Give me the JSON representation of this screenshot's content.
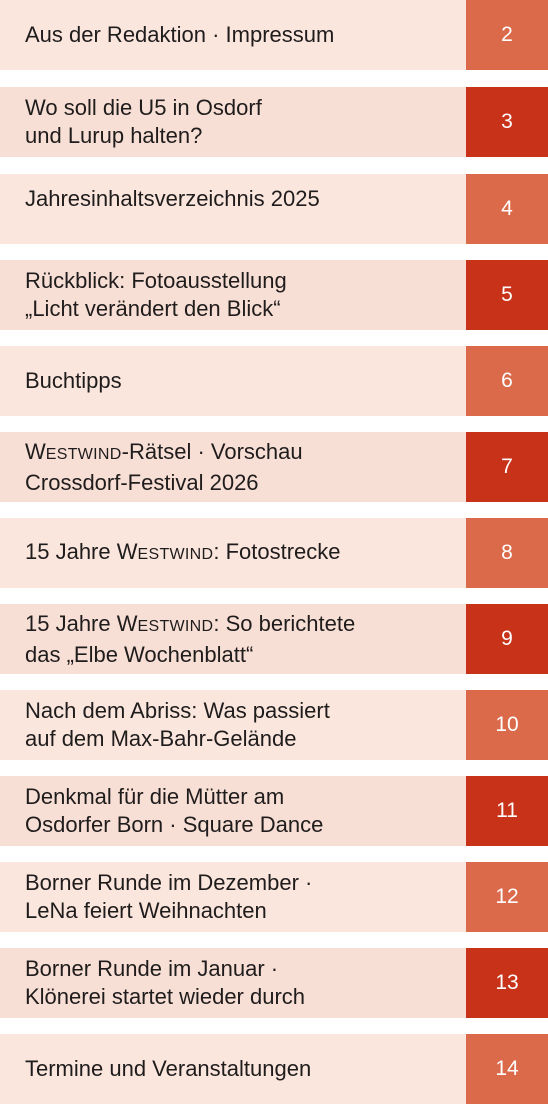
{
  "colors": {
    "page_box_orange": "#db6a4b",
    "page_box_red": "#c83219",
    "row_background_light": "#fbe6de",
    "row_background_darker": "#f8dfd6",
    "text": "#1f1c1c"
  },
  "toc": [
    {
      "lines": [
        "Aus der Redaktion · Impressum"
      ],
      "page": "2"
    },
    {
      "lines": [
        "Wo soll die U5 in Osdorf",
        "und Lurup halten?"
      ],
      "page": "3"
    },
    {
      "lines": [
        "Jahresinhaltsverzeichnis 2025"
      ],
      "page": "4"
    },
    {
      "lines": [
        "Rückblick: Fotoausstellung",
        "„Licht verändert den Blick“"
      ],
      "page": "5"
    },
    {
      "lines": [
        "Buchtipps"
      ],
      "page": "6"
    },
    {
      "lines": [
        "WESTWIND-Rätsel · Vorschau",
        "Crossdorf-Festival 2026"
      ],
      "page": "7"
    },
    {
      "lines": [
        "15 Jahre WESTWIND: Fotostrecke"
      ],
      "page": "8"
    },
    {
      "lines": [
        "15 Jahre WESTWIND: So berichtete",
        "das „Elbe Wochenblatt“"
      ],
      "page": "9"
    },
    {
      "lines": [
        "Nach dem Abriss: Was passiert",
        "auf dem Max-Bahr-Gelände"
      ],
      "page": "10"
    },
    {
      "lines": [
        "Denkmal für die Mütter am",
        "Osdorfer Born · Square Dance"
      ],
      "page": "11"
    },
    {
      "lines": [
        "Borner Runde im Dezember ·",
        "LeNa feiert Weihnachten"
      ],
      "page": "12"
    },
    {
      "lines": [
        "Borner Runde im Januar ·",
        "Klönerei startet wieder durch"
      ],
      "page": "13"
    },
    {
      "lines": [
        "Termine und Veranstaltungen"
      ],
      "page": "14"
    }
  ]
}
